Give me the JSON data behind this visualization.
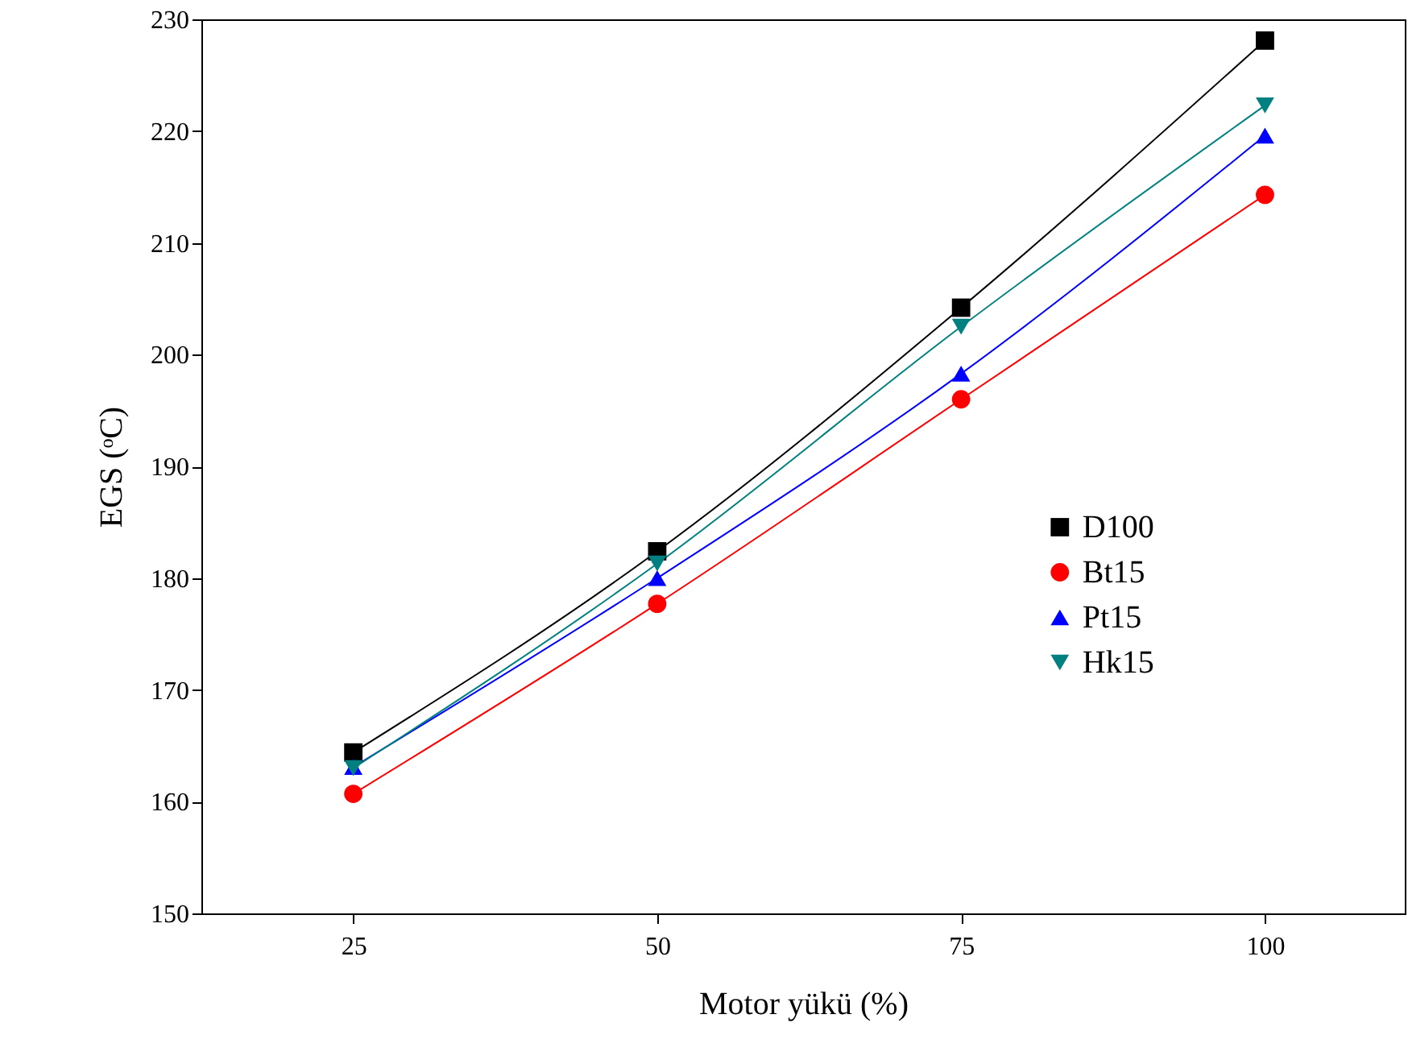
{
  "chart_data": {
    "type": "line",
    "xlabel": "Motor yükü (%)",
    "ylabel": "EGS (ᵒC)",
    "x": [
      25,
      50,
      75,
      100
    ],
    "xlim": [
      12.5,
      111.5
    ],
    "xticks": [
      25,
      50,
      75,
      100
    ],
    "ylim": [
      150,
      230
    ],
    "yticks": [
      150,
      160,
      170,
      180,
      190,
      200,
      210,
      220,
      230
    ],
    "grid": false,
    "legend": "right",
    "line_style": "solid",
    "series": [
      {
        "name": "D100",
        "color": "#000000",
        "marker": "square",
        "values": [
          164.4,
          182.4,
          204.2,
          228.1
        ]
      },
      {
        "name": "Bt15",
        "color": "#ff0000",
        "marker": "circle",
        "values": [
          160.7,
          177.7,
          196.0,
          214.3
        ]
      },
      {
        "name": "Pt15",
        "color": "#0000ff",
        "marker": "triangle",
        "values": [
          163.1,
          180.0,
          198.3,
          219.6
        ]
      },
      {
        "name": "Hk15",
        "color": "#008080",
        "marker": "triangle-down",
        "values": [
          163.0,
          181.3,
          202.5,
          222.3
        ]
      }
    ]
  }
}
